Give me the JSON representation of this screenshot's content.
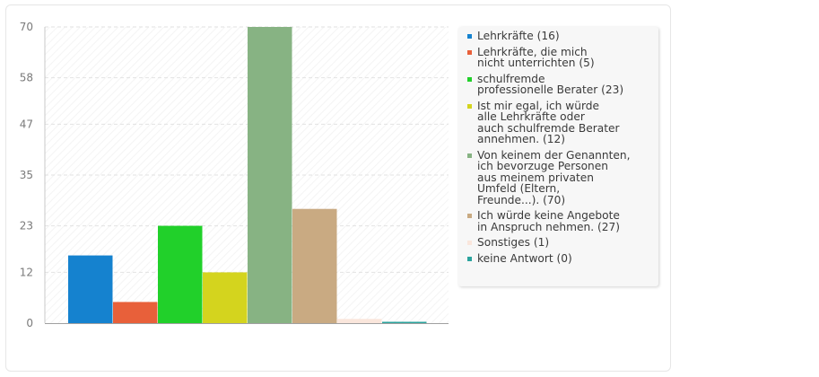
{
  "chart_data": {
    "type": "bar",
    "categories": [
      "Lehrkräfte (16)",
      "Lehrkräfte, die mich\nnicht unterrichten (5)",
      "schulfremde\nprofessionelle Berater (23)",
      "Ist mir egal, ich würde\nalle Lehrkräfte oder\nauch schulfremde Berater\nannehmen. (12)",
      "Von keinem der Genannten,\nich bevorzuge Personen\naus meinem privaten\nUmfeld (Eltern,\nFreunde...). (70)",
      "Ich würde keine Angebote\nin Anspruch nehmen. (27)",
      "Sonstiges (1)",
      "keine Antwort (0)"
    ],
    "values": [
      16,
      5,
      23,
      12,
      70,
      27,
      1,
      0
    ],
    "colors": [
      "#1582cf",
      "#e8603a",
      "#21d02a",
      "#d4d41e",
      "#87b383",
      "#c9aa82",
      "#fae6dc",
      "#2ba39d"
    ],
    "yticks": [
      "0",
      "12",
      "23",
      "35",
      "47",
      "58",
      "70"
    ],
    "ylim": [
      0,
      70
    ],
    "grid": true,
    "legend_position": "right"
  }
}
